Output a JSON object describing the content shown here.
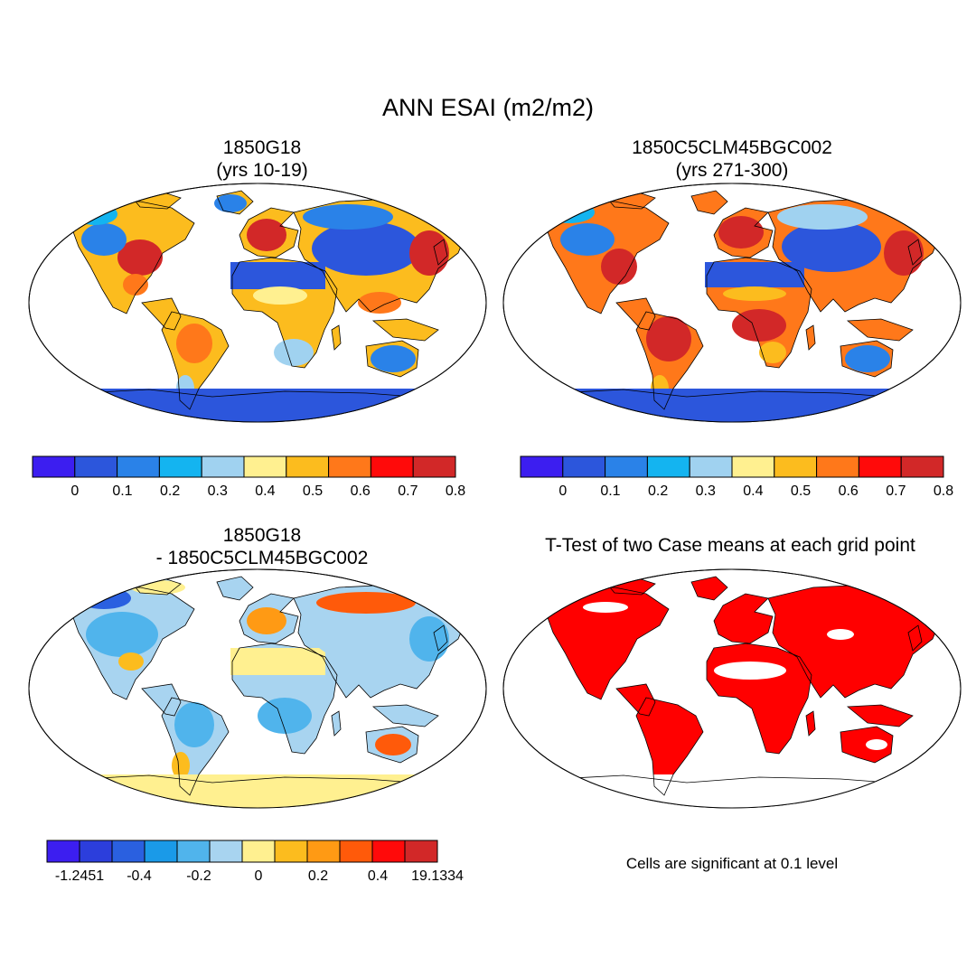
{
  "title": "ANN ESAI (m2/m2)",
  "panels": [
    {
      "id": "case1",
      "title_line1": "1850G18",
      "title_line2": "(yrs 10-19)"
    },
    {
      "id": "case2",
      "title_line1": "1850C5CLM45BGC002",
      "title_line2": "(yrs 271-300)"
    },
    {
      "id": "diff",
      "title_line1": "1850G18",
      "title_line2": "- 1850C5CLM45BGC002"
    },
    {
      "id": "ttest",
      "title_line1": "T-Test of two Case means at each grid point",
      "title_line2": ""
    }
  ],
  "colorbars": {
    "abs": {
      "colors": [
        "#3c1ef0",
        "#2c56dc",
        "#2a82e8",
        "#14b4f0",
        "#a0d2f0",
        "#fff090",
        "#fcbc1e",
        "#ff781a",
        "#ff0a0a",
        "#d22828"
      ],
      "ticks": [
        "0",
        "0.1",
        "0.2",
        "0.3",
        "0.4",
        "0.5",
        "0.6",
        "0.7",
        "0.8"
      ]
    },
    "diff": {
      "colors": [
        "#3c1ef0",
        "#2c3edc",
        "#2a60e0",
        "#1a9ae8",
        "#50b4ec",
        "#a8d4f0",
        "#fff090",
        "#fcbc1e",
        "#ff9a14",
        "#ff5a0a",
        "#ff0a0a",
        "#d22828"
      ],
      "ticks": [
        "-1.2451",
        "-0.4",
        "-0.2",
        "0",
        "0.2",
        "0.4",
        "19.1334"
      ]
    }
  },
  "significance_color": "#ff0000",
  "note": "Cells are significant at 0.1 level"
}
